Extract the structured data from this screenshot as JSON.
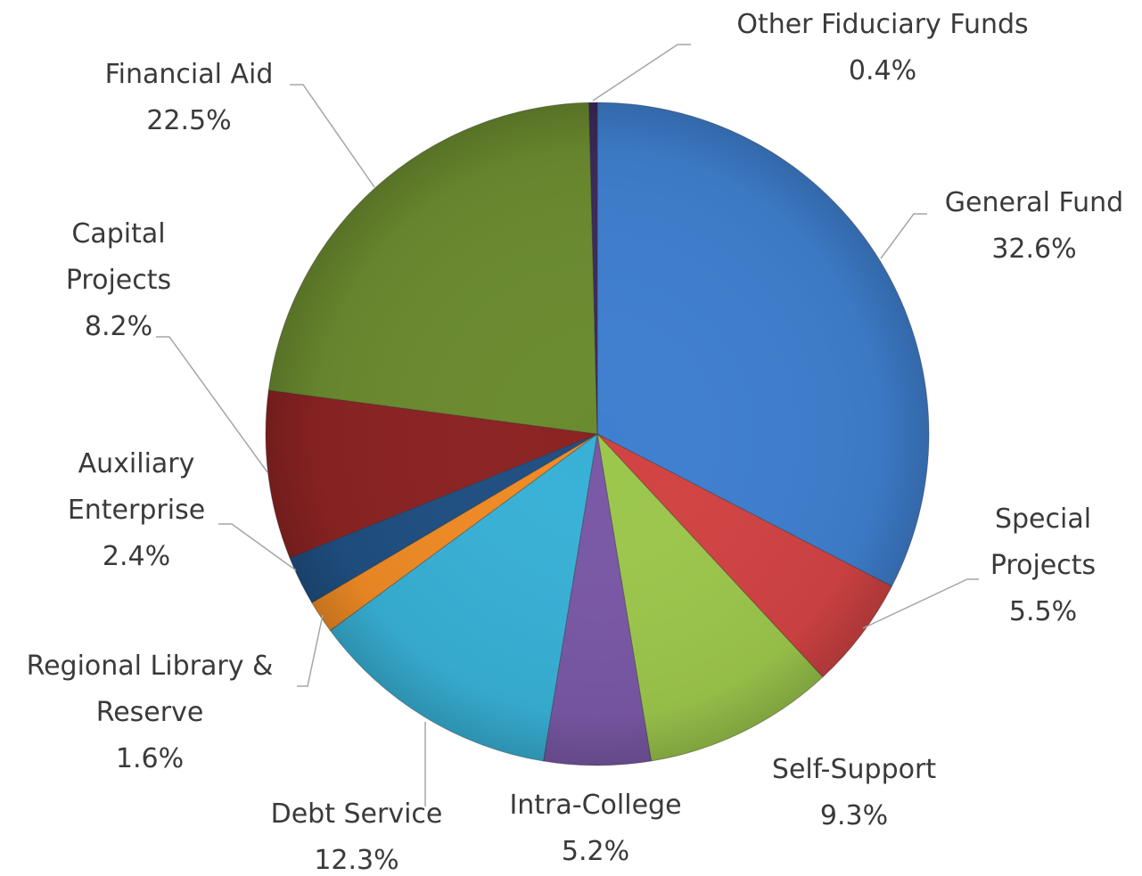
{
  "chart_data": {
    "type": "pie",
    "categories": [
      "General Fund",
      "Special Projects",
      "Self-Support",
      "Intra-College",
      "Debt Service",
      "Regional Library & Reserve",
      "Auxiliary Enterprise",
      "Capital Projects",
      "Financial Aid",
      "Other Fiduciary Funds"
    ],
    "values": [
      32.6,
      5.5,
      9.3,
      5.2,
      12.3,
      1.6,
      2.4,
      8.2,
      22.5,
      0.4
    ],
    "value_labels": [
      "32.6%",
      "5.5%",
      "9.3%",
      "5.2%",
      "12.3%",
      "1.6%",
      "2.4%",
      "8.2%",
      "22.5%",
      "0.4%"
    ],
    "colors": [
      "#3f7fcf",
      "#d24343",
      "#9cc74c",
      "#7a58a6",
      "#38b1d6",
      "#f08b25",
      "#1f4f82",
      "#8c2323",
      "#6b8b2f",
      "#3c2a5c"
    ]
  }
}
